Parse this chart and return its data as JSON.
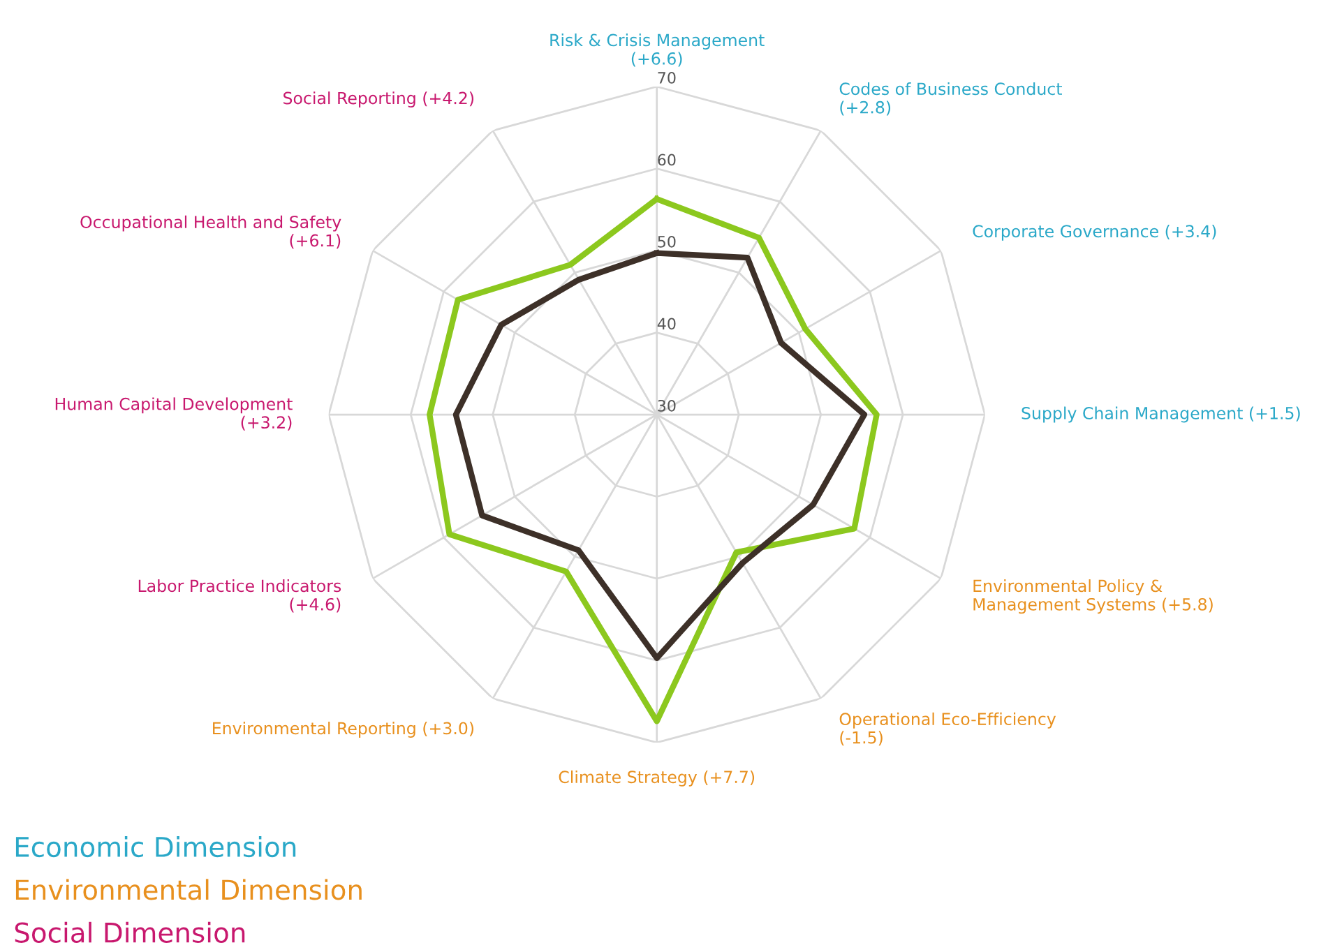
{
  "chart_data": {
    "type": "radar",
    "categories": [
      "Risk & Crisis Management\n(+6.6)",
      "Codes of Business Conduct\n(+2.8)",
      "Corporate Governance (+3.4)",
      "Supply Chain Management (+1.5)",
      "Environmental Policy &\nManagement Systems (+5.8)",
      "Operational Eco-Efficiency\n(-1.5)",
      "Climate Strategy (+7.7)",
      "Environmental Reporting (+3.0)",
      "Labor Practice Indicators\n(+4.6)",
      "Human Capital Development\n(+3.2)",
      "Occupational Health and Safety\n(+6.1)",
      "Social Reporting (+4.2)"
    ],
    "colors": [
      "#2aa8c8",
      "#2aa8c8",
      "#2aa8c8",
      "#2aa8c8",
      "#e8901e",
      "#e8901e",
      "#e8901e",
      "#e8901e",
      "#c8186e",
      "#c8186e",
      "#c8186e",
      "#c8186e"
    ],
    "series": [
      {
        "color": "#8cc81e",
        "values": [
          56.3,
          54.9,
          50.9,
          56.8,
          57.8,
          49.4,
          67.4,
          52.1,
          59.2,
          57.7,
          58.0,
          51.1
        ]
      },
      {
        "color": "#3d3028",
        "values": [
          49.7,
          52.1,
          47.5,
          55.3,
          52.0,
          50.9,
          59.7,
          49.1,
          54.6,
          54.5,
          51.9,
          49.0
        ]
      }
    ],
    "ylim": [
      30,
      70
    ],
    "yticks": [
      30,
      40,
      50,
      60,
      70
    ],
    "grid": true,
    "annotations": [
      "Economic Dimension",
      "Environmental Dimension",
      "Social Dimension"
    ]
  }
}
